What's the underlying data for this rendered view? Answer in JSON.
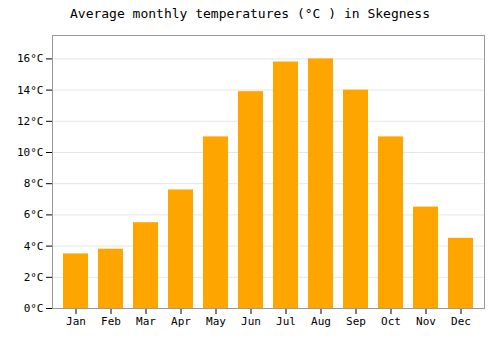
{
  "chart_data": {
    "type": "bar",
    "title": "Average monthly temperatures (°C ) in Skegness",
    "categories": [
      "Jan",
      "Feb",
      "Mar",
      "Apr",
      "May",
      "Jun",
      "Jul",
      "Aug",
      "Sep",
      "Oct",
      "Nov",
      "Dec"
    ],
    "values": [
      3.5,
      3.8,
      5.5,
      7.6,
      11.0,
      13.9,
      15.8,
      16.0,
      14.0,
      11.0,
      6.5,
      4.5
    ],
    "color": "#FFA500",
    "ylim": [
      0,
      17.5
    ],
    "yticks": [
      {
        "value": 0,
        "label": "0°C"
      },
      {
        "value": 2,
        "label": "2°C"
      },
      {
        "value": 4,
        "label": "4°C"
      },
      {
        "value": 6,
        "label": "6°C"
      },
      {
        "value": 8,
        "label": "8°C"
      },
      {
        "value": 10,
        "label": "10°C"
      },
      {
        "value": 12,
        "label": "12°C"
      },
      {
        "value": 14,
        "label": "14°C"
      },
      {
        "value": 16,
        "label": "16°C"
      }
    ],
    "grid": true
  }
}
